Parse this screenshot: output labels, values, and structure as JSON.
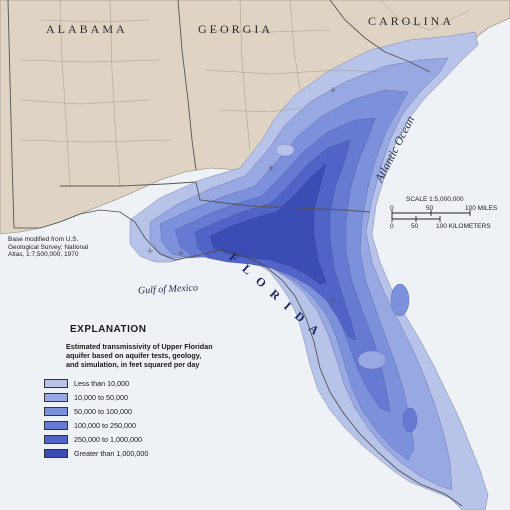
{
  "map": {
    "states": [
      {
        "name": "ALABAMA"
      },
      {
        "name": "GEORGIA"
      },
      {
        "name": "CAROLINA"
      },
      {
        "name": "FLORIDA"
      }
    ],
    "water_labels": {
      "ocean": "Atlantic Ocean",
      "gulf": "Gulf of Mexico"
    },
    "credit": [
      "Base modified from U.S.",
      "Geological Survey; National",
      "Atlas, 1:7,500,000, 1970"
    ],
    "scale": {
      "title": "SCALE 1:5,000,000",
      "miles_ticks": [
        "0",
        "50",
        "100 MILES"
      ],
      "km_ticks": [
        "0",
        "50",
        "100 KILOMETERS"
      ]
    },
    "colors": {
      "land": "#dfd4c4",
      "ocean": "#eef1f6",
      "border": "#555555"
    }
  },
  "legend": {
    "title": "EXPLANATION",
    "description": [
      "Estimated transmissivity of Upper Floridan",
      "aquifer based on aquifer tests, geology,",
      "and simulation, in feet squared per day"
    ],
    "classes": [
      {
        "label": "Less than 10,000",
        "color": "#b8c3e9"
      },
      {
        "label": "10,000 to 50,000",
        "color": "#98a8e3"
      },
      {
        "label": "50,000 to 100,000",
        "color": "#7d90dc"
      },
      {
        "label": "100,000 to 250,000",
        "color": "#6679d3"
      },
      {
        "label": "250,000 to 1,000,000",
        "color": "#5163c7"
      },
      {
        "label": "Greater than 1,000,000",
        "color": "#3c4cb5"
      }
    ]
  }
}
